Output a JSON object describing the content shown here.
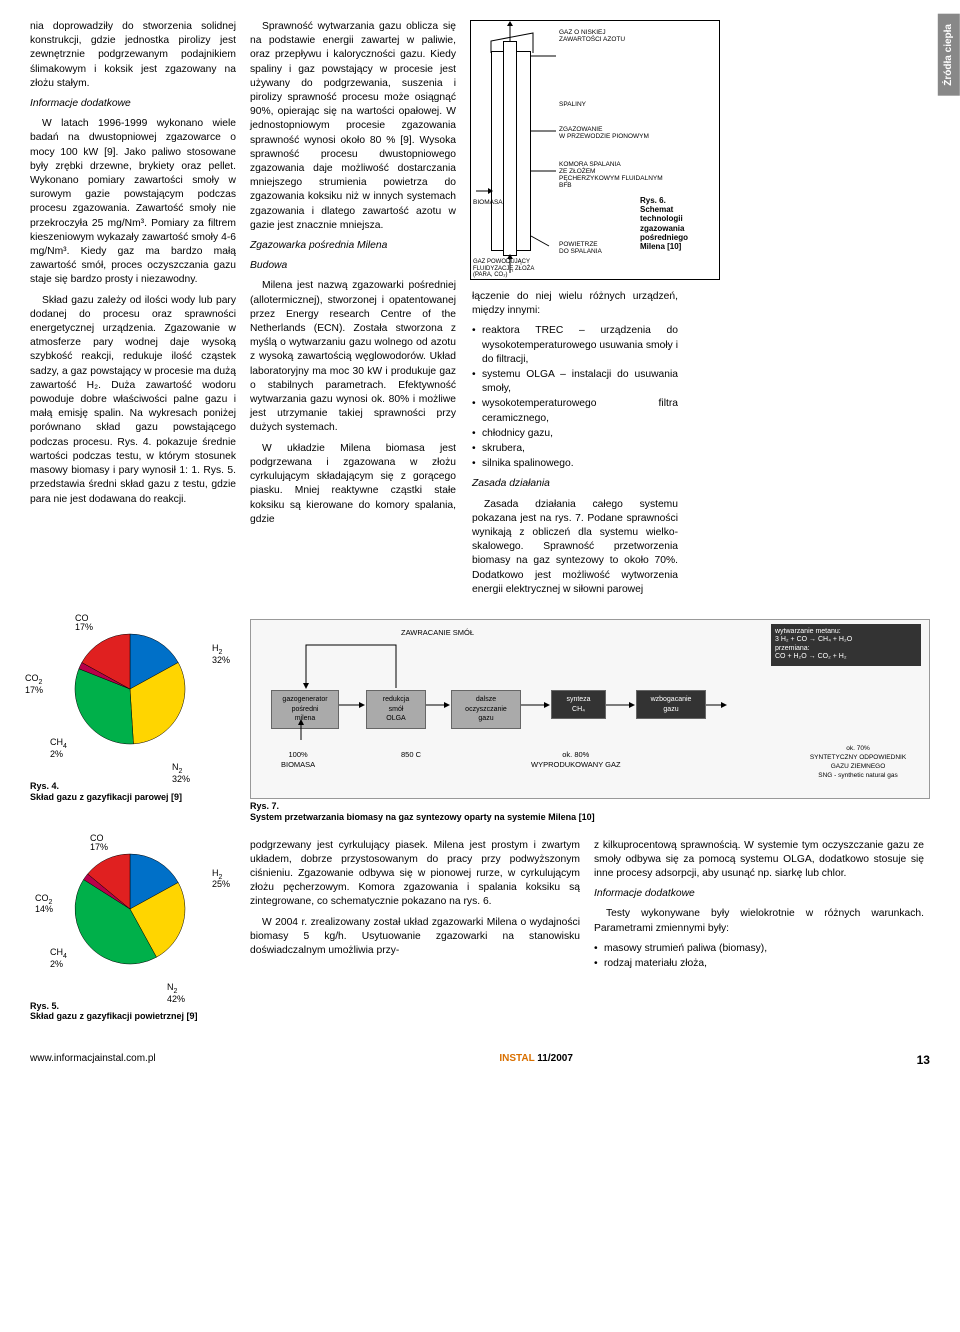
{
  "sidebar_tab": "Źródła ciepła",
  "col1": {
    "p1": "nia doprowadziły do stworzenia solidnej konstrukcji, gdzie jednostka pirolizy jest zewnętrznie podgrzewanym podajnikiem ślimakowym i koksik jest zgazowany na złożu stałym.",
    "h1": "Informacje dodatkowe",
    "p2": "W latach 1996-1999 wykonano wiele badań na dwustopniowej zgazowarce o mocy 100 kW [9]. Jako paliwo stosowane były zrębki drzewne, brykiety oraz pellet. Wykonano pomiary zawartości smoły w surowym gazie powstającym podczas procesu zgazowania. Zawartość smoły nie przekroczyła 25 mg/Nm³. Pomiary za filtrem kieszeniowym wykazały zawartość smoły 4-6 mg/Nm³. Kiedy gaz ma bardzo małą zawartość smół, proces oczyszczania gazu staje się bardzo prosty i niezawodny.",
    "p3": "Skład gazu zależy od ilości wody lub pary dodanej do procesu oraz sprawności energetycznej urządzenia. Zgazowanie w atmosferze pary wodnej daje wysoką szybkość reakcji, redukuje ilość cząstek sadzy, a gaz powstający w procesie ma dużą zawartość H₂. Duża zawartość wodoru powoduje dobre właściwości palne gazu i małą emisję spalin. Na wykresach poniżej porównano skład gazu powstającego podczas procesu. Rys. 4. pokazuje średnie wartości podczas testu, w którym stosunek masowy biomasy i pary wynosił 1: 1. Rys. 5. przedstawia średni skład gazu z testu, gdzie para nie jest dodawana do reakcji."
  },
  "col2": {
    "p1": "Sprawność wytwarzania gazu oblicza się na podstawie energii zawartej w paliwie, oraz przepływu i kaloryczności gazu. Kiedy spaliny i gaz powstający w procesie jest używany do podgrzewania, suszenia i pirolizy sprawność procesu może osiągnąć 90%, opierając się na wartości opałowej. W jednostopniowym procesie zgazowania sprawność wynosi około 80 % [9]. Wysoka sprawność procesu dwustopniowego zgazowania daje możliwość dostarczania mniejszego strumienia powietrza do zgazowania koksiku niż w innych systemach zgazowania i dlatego zawartość azotu w gazie jest znacznie mniejsza.",
    "h1": "Zgazowarka pośrednia Milena",
    "h2": "Budowa",
    "p2": "Milena jest nazwą zgazowarki pośredniej (allotermicznej), stworzonej i opatentowanej przez Energy research Centre of the Netherlands (ECN). Została stworzona z myślą o wytwarzaniu gazu wolnego od azotu z wysoką zawartością węglowodorów. Układ laboratoryjny ma moc 30 kW i produkuje gaz o stabilnych parametrach. Efektywność wytwarzania gazu wynosi ok. 80% i możliwe jest utrzymanie takiej sprawności przy dużych systemach.",
    "p3": "W układzie Milena biomasa jest podgrzewana i zgazowana w złożu cyrkulującym składającym się z gorącego piasku. Mniej reaktywne cząstki stałe koksiku są kierowane do komory spalania, gdzie"
  },
  "fig6": {
    "labels": {
      "l1": "GAZ O NISKIEJ\nZAWARTOŚCI AZOTU",
      "l2": "SPALINY",
      "l3": "ZGAZOWANIE\nW PRZEWODZIE PIONOWYM",
      "l4": "KOMORA SPALANIA\nZE ZŁOŻEM\nPĘCHERZYKOWYM FLUIDALNYM\nBFB",
      "l5": "BIOMASA",
      "l6": "GAZ POWODUJĄCY\nFLUIDYZACJĘ ZŁOŻA\n(PARA, CO₂)",
      "l7": "POWIETRZE\nDO SPALANIA"
    },
    "caption_num": "Rys. 6.",
    "caption": "Schemat technologii zgazowania pośredniego Milena [10]"
  },
  "col4": {
    "p1": "łączenie do niej wielu różnych urządzeń, między innymi:",
    "items": [
      "reaktora TREC – urządzenia do wysokotemperaturowego usuwania smoły i do filtracji,",
      "systemu OLGA – instalacji do usuwania smoły,",
      "wysokotemperaturowego filtra ceramicznego,",
      "chłodnicy gazu,",
      "skrubera,",
      "silnika spalinowego."
    ],
    "h1": "Zasada działania",
    "p2": "Zasada działania całego systemu pokazana jest na rys. 7. Podane sprawności wynikają z obliczeń dla systemu wielko-skalowego. Sprawność przetworzenia biomasy na gaz syntezowy to około 70%. Dodatkowo jest możliwość wytworzenia energii elektrycznej w siłowni parowej"
  },
  "pie4": {
    "title_num": "Rys. 4.",
    "title": "Skład gazu z gazyfikacji parowej [9]",
    "slices": [
      {
        "label": "CO",
        "pct": 17,
        "color": "#0070c8"
      },
      {
        "label": "H₂",
        "pct": 32,
        "color": "#ffd500"
      },
      {
        "label": "N₂",
        "pct": 32,
        "color": "#00b04a"
      },
      {
        "label": "CH₄",
        "pct": 2,
        "color": "#b8004a"
      },
      {
        "label": "CO₂",
        "pct": 17,
        "color": "#e02020"
      }
    ]
  },
  "pie5": {
    "title_num": "Rys. 5.",
    "title": "Skład gazu z gazyfikacji powietrznej [9]",
    "slices": [
      {
        "label": "CO",
        "pct": 17,
        "color": "#0070c8"
      },
      {
        "label": "H₂",
        "pct": 25,
        "color": "#ffd500"
      },
      {
        "label": "N₂",
        "pct": 42,
        "color": "#00b04a"
      },
      {
        "label": "CH₄",
        "pct": 2,
        "color": "#b8004a"
      },
      {
        "label": "CO₂",
        "pct": 14,
        "color": "#e02020"
      }
    ]
  },
  "fig7": {
    "caption_num": "Rys. 7.",
    "caption": "System przetwarzania biomasy na gaz syntezowy oparty na systemie Milena [10]",
    "header1": "ZAWRACANIE SMÓŁ",
    "header2": "wytwarzanie metanu:\n3 H₂ + CO → CH₄ + H₂O\nprzemiana:\nCO + H₂O → CO₂ + H₂",
    "boxes": [
      "gazogenerator\npośredni\nmilena",
      "redukcja\nsmół\nOLGA",
      "dalsze\noczyszczanie\ngazu",
      "synteza\nCH₄",
      "wzbogacanie\ngazu"
    ],
    "bottoms": [
      "100%\nBIOMASA",
      "850 C",
      "ok. 80%\nWYPRODUKOWANY GAZ",
      "ok. 70%\nSYNTETYCZNY ODPOWIEDNIK\nGAZU ZIEMNEGO\nSNG - synthetic natural gas"
    ]
  },
  "bottom": {
    "col2": {
      "p1": "podgrzewany jest cyrkulujący piasek. Milena jest prostym i zwartym układem, dobrze przystosowanym do pracy przy podwyższonym ciśnieniu. Zgazowanie odbywa się w pionowej rurze, w cyrkulującym złożu pęcherzowym. Komora zgazowania i spalania koksiku są zintegrowane, co schematycznie pokazano na rys. 6.",
      "p2": "W 2004 r. zrealizowany został układ zgazowarki Milena o wydajności biomasy 5 kg/h. Usytuowanie zgazowarki na stanowisku doświadczalnym umożliwia przy-"
    },
    "col3": {
      "p1": "z kilkuprocentową sprawnością. W systemie tym oczyszczanie gazu ze smoły odbywa się za pomocą systemu OLGA, dodatkowo stosuje się inne procesy adsorpcji, aby usunąć np. siarkę lub chlor.",
      "h1": "Informacje dodatkowe",
      "p2": "Testy wykonywane były wielokrotnie w różnych warunkach. Parametrami zmiennymi były:",
      "items": [
        "masowy strumień paliwa (biomasy),",
        "rodzaj materiału złoża,"
      ]
    }
  },
  "footer": {
    "url": "www.informacjainstal.com.pl",
    "mag": "INSTAL",
    "issue": "11/2007",
    "page": "13"
  }
}
